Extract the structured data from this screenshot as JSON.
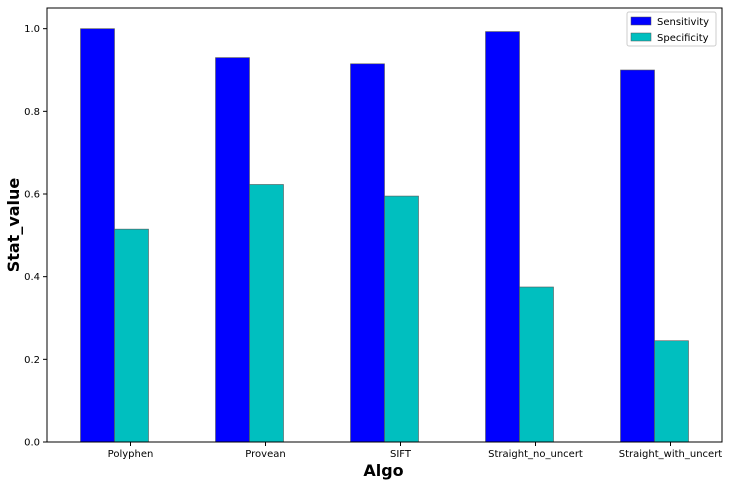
{
  "chart_data": {
    "type": "bar",
    "title": "",
    "xlabel": "Algo",
    "ylabel": "Stat_value",
    "categories": [
      "Polyphen",
      "Provean",
      "SIFT",
      "Straight_no_uncert",
      "Straight_with_uncert"
    ],
    "series": [
      {
        "name": "Sensitivity",
        "color": "#0000ff",
        "values": [
          1.0,
          0.93,
          0.915,
          0.993,
          0.9
        ]
      },
      {
        "name": "Specificity",
        "color": "#00bfbf",
        "values": [
          0.515,
          0.623,
          0.595,
          0.375,
          0.245
        ]
      }
    ],
    "ylim": [
      0,
      1.05
    ],
    "yticks": [
      "0.0",
      "0.2",
      "0.4",
      "0.6",
      "0.8",
      "1.0"
    ],
    "ytick_values": [
      0,
      0.2,
      0.4,
      0.6,
      0.8,
      1.0
    ],
    "grid": false,
    "legend_position": "top-right"
  }
}
